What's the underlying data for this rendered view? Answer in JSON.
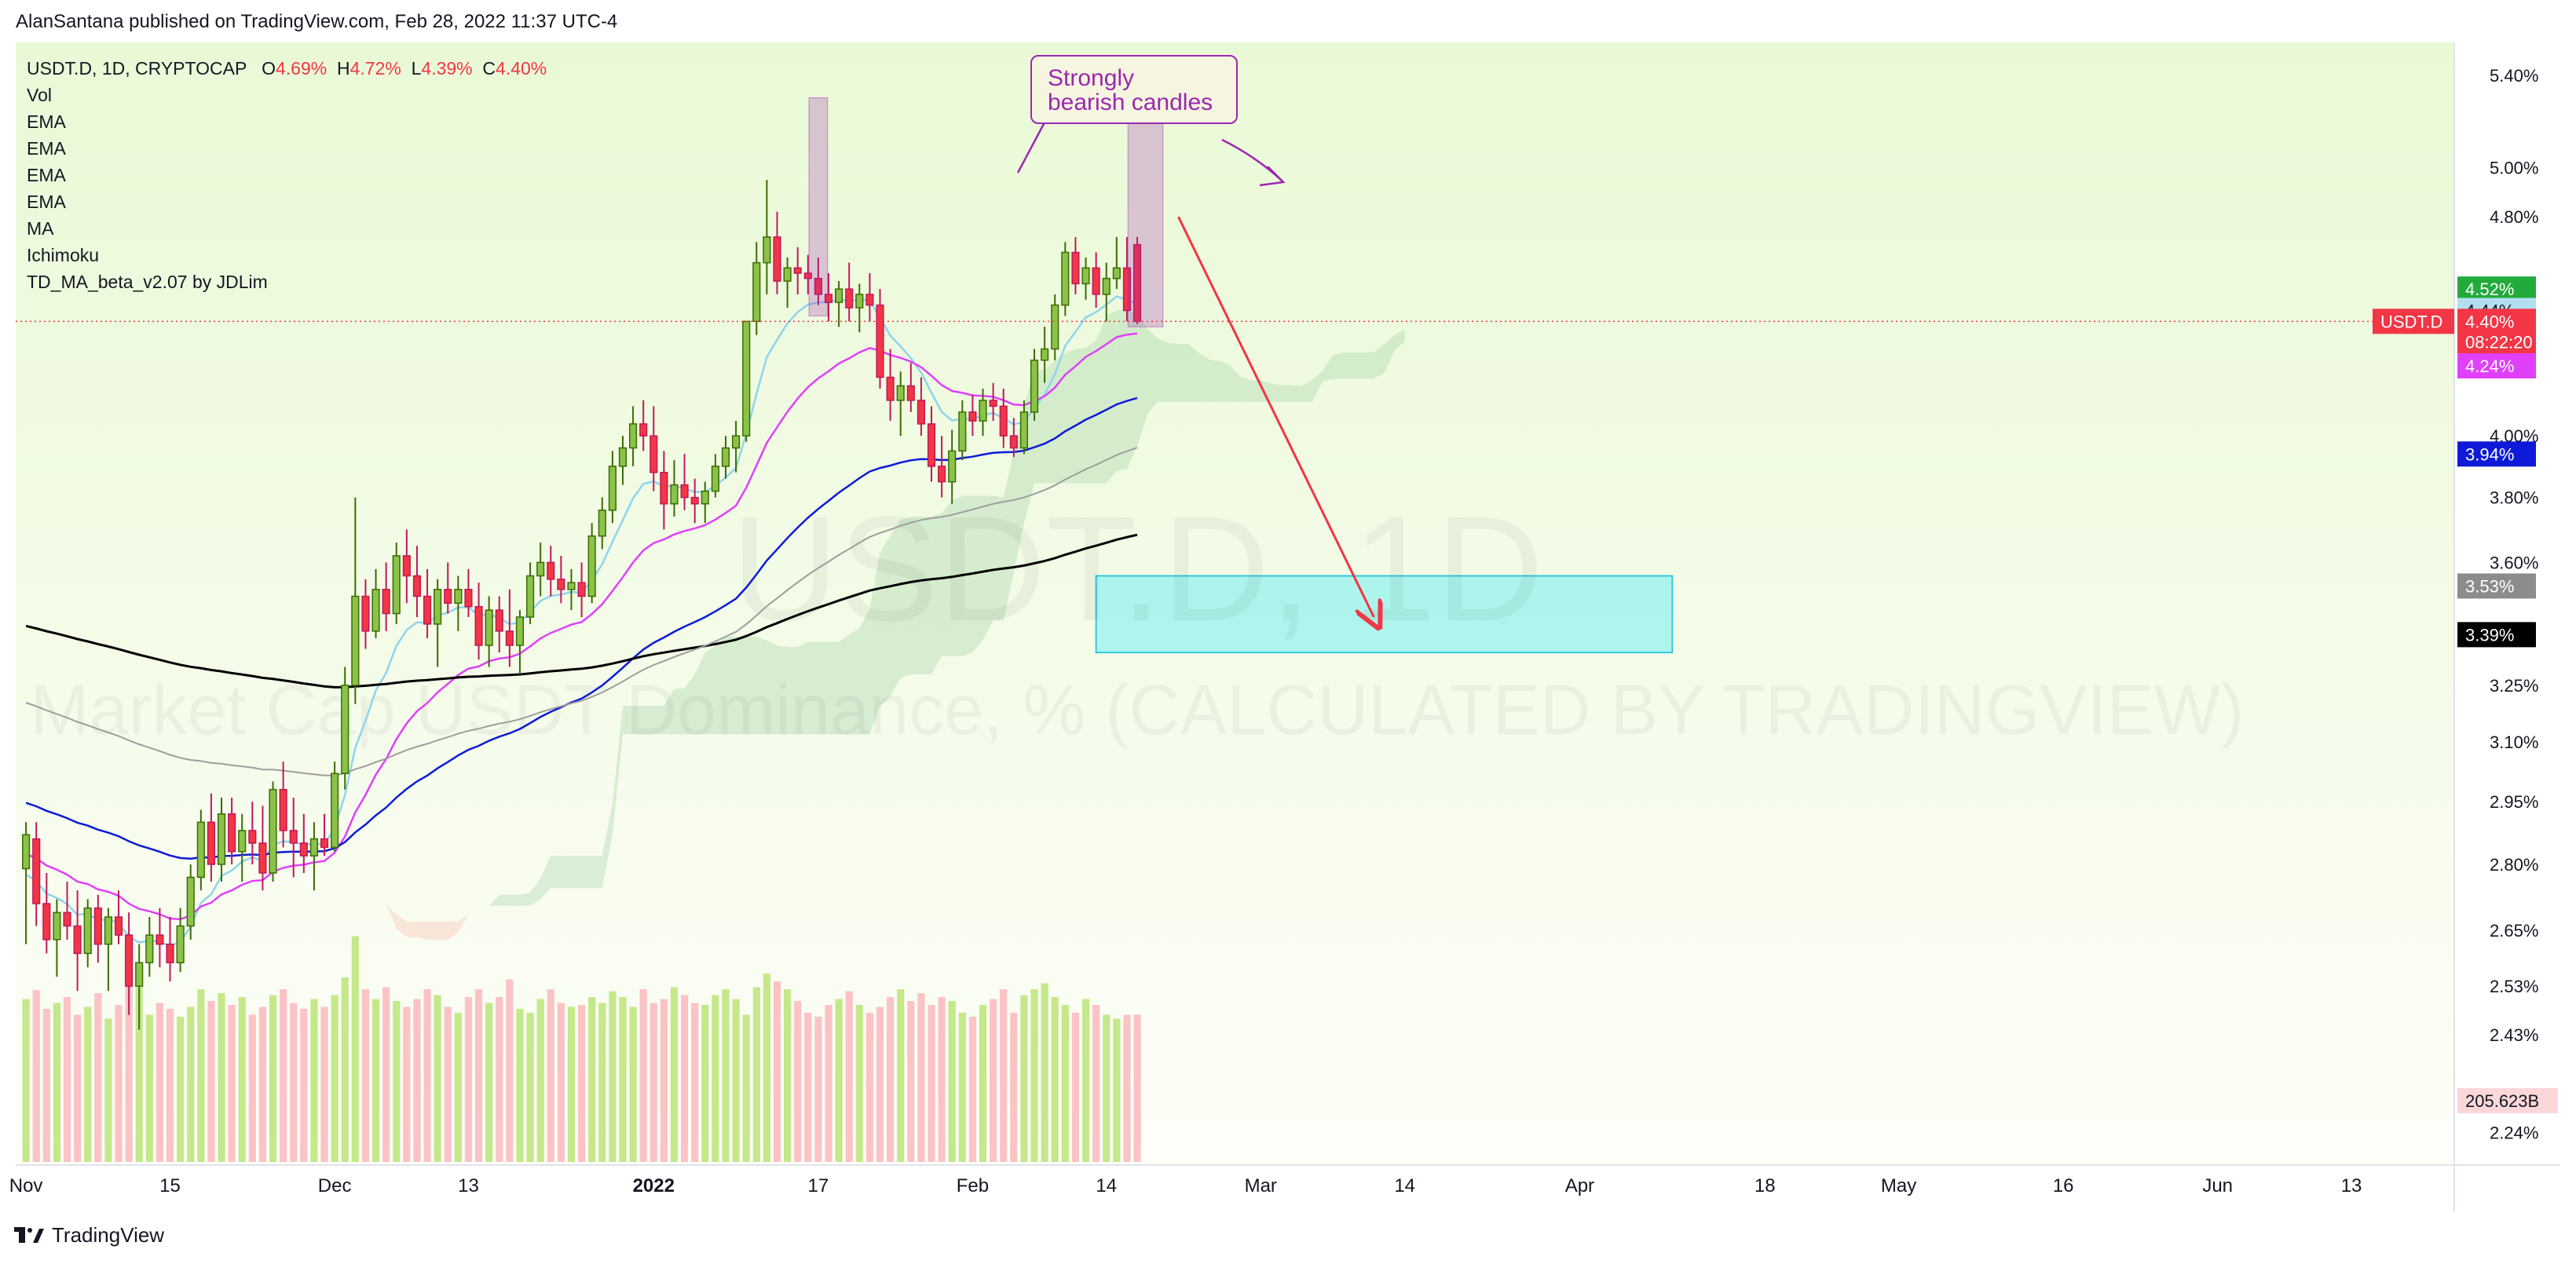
{
  "header": {
    "text": "AlanSantana published on TradingView.com, Feb 28, 2022 11:37 UTC-4"
  },
  "legend": {
    "symbol": "USDT.D, 1D, CRYPTOCAP",
    "ohlc": [
      {
        "k": "O",
        "v": "4.69%"
      },
      {
        "k": "H",
        "v": "4.72%"
      },
      {
        "k": "L",
        "v": "4.39%"
      },
      {
        "k": "C",
        "v": "4.40%"
      }
    ],
    "indicators": [
      "Vol",
      "EMA",
      "EMA",
      "EMA",
      "EMA",
      "MA",
      "Ichimoku",
      "TD_MA_beta_v2.07 by JDLim"
    ]
  },
  "watermark": {
    "line1": "USDT.D, 1D",
    "line2": "Market Cap USDT Dominance, % (CALCULATED BY TRADINGVIEW)"
  },
  "annotation": {
    "text_line1": "Strongly",
    "text_line2": "bearish candles"
  },
  "price_tags": [
    {
      "text": "4.52%",
      "bg": "#22ab3c"
    },
    {
      "text": "4.44%",
      "bg": "#b2dfee",
      "fg": "#131722"
    },
    {
      "text": "4.40%",
      "sub": "08:22:20",
      "bg": "#f23645",
      "symbol": "USDT.D"
    },
    {
      "text": "4.24%",
      "bg": "#e040fb"
    },
    {
      "text": "3.94%",
      "bg": "#0d1ad8"
    },
    {
      "text": "3.53%",
      "bg": "#8c8c8c"
    },
    {
      "text": "3.39%",
      "bg": "#000000"
    },
    {
      "text": "205.623B",
      "bg": "#fcd7d9",
      "fg": "#131722"
    }
  ],
  "footer": {
    "brand": "TradingView"
  },
  "chart_data": {
    "type": "candlestick",
    "title": "USDT.D, 1D, CRYPTOCAP",
    "y_axis": {
      "scale": "log",
      "ticks": [
        "5.40%",
        "5.00%",
        "4.80%",
        "4.00%",
        "3.80%",
        "3.60%",
        "3.25%",
        "3.10%",
        "2.95%",
        "2.80%",
        "2.65%",
        "2.53%",
        "2.43%",
        "2.24%"
      ],
      "tick_values": [
        5.4,
        5.0,
        4.8,
        4.0,
        3.8,
        3.6,
        3.25,
        3.1,
        2.95,
        2.8,
        2.65,
        2.53,
        2.43,
        2.24
      ],
      "range": [
        2.18,
        5.55
      ]
    },
    "x_axis": {
      "ticks": [
        "Nov",
        "15",
        "Dec",
        "13",
        "2022",
        "17",
        "Feb",
        "14",
        "Mar",
        "14",
        "Apr",
        "18",
        "May",
        "16",
        "Jun",
        "13"
      ],
      "tick_day_index": [
        0,
        14,
        30,
        43,
        61,
        77,
        92,
        105,
        120,
        134,
        151,
        169,
        182,
        198,
        213,
        226
      ],
      "range_days": [
        -1,
        236
      ],
      "bold_ticks": [
        "2022"
      ]
    },
    "candles": {
      "fields": [
        "o",
        "h",
        "l",
        "c"
      ],
      "start": "2021-10-31",
      "values": [
        [
          2.79,
          2.9,
          2.62,
          2.87
        ],
        [
          2.86,
          2.9,
          2.66,
          2.71
        ],
        [
          2.71,
          2.78,
          2.6,
          2.63
        ],
        [
          2.63,
          2.72,
          2.55,
          2.69
        ],
        [
          2.69,
          2.76,
          2.63,
          2.66
        ],
        [
          2.66,
          2.74,
          2.52,
          2.6
        ],
        [
          2.6,
          2.72,
          2.57,
          2.7
        ],
        [
          2.7,
          2.73,
          2.58,
          2.62
        ],
        [
          2.62,
          2.7,
          2.52,
          2.68
        ],
        [
          2.68,
          2.74,
          2.62,
          2.64
        ],
        [
          2.64,
          2.69,
          2.47,
          2.53
        ],
        [
          2.53,
          2.62,
          2.44,
          2.58
        ],
        [
          2.58,
          2.68,
          2.55,
          2.64
        ],
        [
          2.64,
          2.7,
          2.57,
          2.62
        ],
        [
          2.62,
          2.68,
          2.54,
          2.58
        ],
        [
          2.58,
          2.7,
          2.56,
          2.66
        ],
        [
          2.66,
          2.8,
          2.63,
          2.77
        ],
        [
          2.77,
          2.93,
          2.74,
          2.9
        ],
        [
          2.9,
          2.97,
          2.76,
          2.8
        ],
        [
          2.8,
          2.96,
          2.76,
          2.92
        ],
        [
          2.92,
          2.96,
          2.8,
          2.83
        ],
        [
          2.83,
          2.92,
          2.76,
          2.88
        ],
        [
          2.88,
          2.95,
          2.8,
          2.85
        ],
        [
          2.85,
          2.94,
          2.74,
          2.78
        ],
        [
          2.78,
          3.0,
          2.76,
          2.98
        ],
        [
          2.98,
          3.05,
          2.84,
          2.88
        ],
        [
          2.88,
          2.96,
          2.77,
          2.85
        ],
        [
          2.85,
          2.92,
          2.78,
          2.82
        ],
        [
          2.82,
          2.9,
          2.74,
          2.86
        ],
        [
          2.86,
          2.92,
          2.82,
          2.84
        ],
        [
          2.84,
          3.05,
          2.83,
          3.02
        ],
        [
          3.02,
          3.3,
          2.98,
          3.25
        ],
        [
          3.25,
          3.8,
          3.2,
          3.5
        ],
        [
          3.5,
          3.55,
          3.35,
          3.4
        ],
        [
          3.4,
          3.58,
          3.38,
          3.52
        ],
        [
          3.52,
          3.6,
          3.4,
          3.45
        ],
        [
          3.45,
          3.66,
          3.42,
          3.62
        ],
        [
          3.62,
          3.7,
          3.48,
          3.56
        ],
        [
          3.56,
          3.65,
          3.44,
          3.5
        ],
        [
          3.5,
          3.58,
          3.38,
          3.42
        ],
        [
          3.42,
          3.55,
          3.3,
          3.52
        ],
        [
          3.52,
          3.6,
          3.45,
          3.48
        ],
        [
          3.48,
          3.56,
          3.4,
          3.52
        ],
        [
          3.52,
          3.58,
          3.44,
          3.47
        ],
        [
          3.47,
          3.54,
          3.32,
          3.36
        ],
        [
          3.36,
          3.5,
          3.3,
          3.46
        ],
        [
          3.46,
          3.5,
          3.34,
          3.4
        ],
        [
          3.4,
          3.52,
          3.3,
          3.36
        ],
        [
          3.36,
          3.46,
          3.28,
          3.44
        ],
        [
          3.44,
          3.6,
          3.42,
          3.56
        ],
        [
          3.56,
          3.66,
          3.5,
          3.6
        ],
        [
          3.6,
          3.65,
          3.5,
          3.55
        ],
        [
          3.55,
          3.62,
          3.48,
          3.52
        ],
        [
          3.52,
          3.58,
          3.46,
          3.54
        ],
        [
          3.54,
          3.6,
          3.44,
          3.5
        ],
        [
          3.5,
          3.72,
          3.48,
          3.68
        ],
        [
          3.68,
          3.8,
          3.64,
          3.76
        ],
        [
          3.76,
          3.95,
          3.72,
          3.9
        ],
        [
          3.9,
          4.0,
          3.84,
          3.96
        ],
        [
          3.96,
          4.1,
          3.9,
          4.04
        ],
        [
          4.04,
          4.12,
          3.95,
          4.0
        ],
        [
          4.0,
          4.1,
          3.82,
          3.88
        ],
        [
          3.88,
          3.95,
          3.7,
          3.78
        ],
        [
          3.78,
          3.92,
          3.74,
          3.84
        ],
        [
          3.84,
          3.94,
          3.76,
          3.8
        ],
        [
          3.8,
          3.86,
          3.72,
          3.78
        ],
        [
          3.78,
          3.85,
          3.72,
          3.82
        ],
        [
          3.82,
          3.94,
          3.8,
          3.9
        ],
        [
          3.9,
          4.0,
          3.86,
          3.96
        ],
        [
          3.96,
          4.05,
          3.88,
          4.0
        ],
        [
          4.0,
          4.4,
          3.98,
          4.4
        ],
        [
          4.4,
          4.7,
          4.35,
          4.62
        ],
        [
          4.62,
          4.95,
          4.5,
          4.72
        ],
        [
          4.72,
          4.82,
          4.5,
          4.55
        ],
        [
          4.55,
          4.64,
          4.45,
          4.6
        ],
        [
          4.6,
          4.68,
          4.5,
          4.58
        ],
        [
          4.58,
          4.65,
          4.5,
          4.56
        ],
        [
          4.56,
          4.64,
          4.46,
          4.5
        ],
        [
          4.5,
          4.58,
          4.4,
          4.47
        ],
        [
          4.47,
          4.55,
          4.38,
          4.52
        ],
        [
          4.52,
          4.62,
          4.4,
          4.45
        ],
        [
          4.45,
          4.54,
          4.36,
          4.5
        ],
        [
          4.5,
          4.58,
          4.4,
          4.46
        ],
        [
          4.46,
          4.52,
          4.16,
          4.2
        ],
        [
          4.2,
          4.3,
          4.05,
          4.12
        ],
        [
          4.12,
          4.22,
          4.0,
          4.17
        ],
        [
          4.17,
          4.25,
          4.08,
          4.12
        ],
        [
          4.12,
          4.2,
          4.0,
          4.04
        ],
        [
          4.04,
          4.1,
          3.85,
          3.9
        ],
        [
          3.9,
          4.0,
          3.8,
          3.85
        ],
        [
          3.85,
          4.02,
          3.78,
          3.95
        ],
        [
          3.95,
          4.12,
          3.92,
          4.08
        ],
        [
          4.08,
          4.14,
          4.0,
          4.05
        ],
        [
          4.05,
          4.16,
          4.0,
          4.12
        ],
        [
          4.12,
          4.18,
          4.05,
          4.1
        ],
        [
          4.1,
          4.16,
          3.96,
          4.0
        ],
        [
          4.0,
          4.06,
          3.93,
          3.96
        ],
        [
          3.96,
          4.12,
          3.94,
          4.08
        ],
        [
          4.08,
          4.3,
          4.05,
          4.26
        ],
        [
          4.26,
          4.38,
          4.18,
          4.3
        ],
        [
          4.3,
          4.5,
          4.26,
          4.46
        ],
        [
          4.46,
          4.7,
          4.42,
          4.66
        ],
        [
          4.66,
          4.72,
          4.5,
          4.54
        ],
        [
          4.54,
          4.64,
          4.48,
          4.6
        ],
        [
          4.6,
          4.66,
          4.45,
          4.5
        ],
        [
          4.5,
          4.62,
          4.4,
          4.56
        ],
        [
          4.56,
          4.72,
          4.52,
          4.6
        ],
        [
          4.6,
          4.72,
          4.4,
          4.44
        ],
        [
          4.69,
          4.72,
          4.39,
          4.4
        ]
      ]
    },
    "volume": {
      "values": [
        166,
        175,
        156,
        162,
        168,
        150,
        158,
        172,
        146,
        160,
        200,
        178,
        150,
        162,
        156,
        148,
        158,
        176,
        164,
        172,
        160,
        168,
        150,
        158,
        170,
        176,
        162,
        156,
        166,
        158,
        170,
        188,
        230,
        176,
        166,
        178,
        164,
        158,
        166,
        176,
        170,
        158,
        152,
        168,
        176,
        162,
        168,
        186,
        156,
        152,
        166,
        176,
        162,
        158,
        160,
        168,
        162,
        174,
        168,
        158,
        176,
        162,
        166,
        178,
        170,
        162,
        160,
        170,
        176,
        166,
        150,
        178,
        192,
        184,
        176,
        164,
        152,
        148,
        160,
        166,
        174,
        160,
        152,
        158,
        168,
        176,
        164,
        172,
        160,
        168,
        164,
        152,
        148,
        160,
        166,
        176,
        152,
        170,
        176,
        182,
        168,
        160,
        152,
        166,
        160,
        150,
        146,
        150,
        150
      ],
      "last_label": "205.623B"
    },
    "series": [
      {
        "name": "EMA",
        "color": "#90d4ec"
      },
      {
        "name": "EMA",
        "color": "#e040fb"
      },
      {
        "name": "EMA",
        "color": "#0d1ad8"
      },
      {
        "name": "EMA",
        "color": "#000000"
      },
      {
        "name": "MA",
        "color": "#9e9e9e"
      }
    ],
    "last_price": {
      "symbol": "USDT.D",
      "value": "4.40%",
      "countdown": "08:22:20"
    },
    "target_zone": {
      "price_low": 3.34,
      "price_high": 3.56,
      "day_start": 104,
      "day_end": 160
    },
    "colors": {
      "up": "#8bc34a",
      "down": "#f23645",
      "bg_top": "#e8f8d4",
      "bg_bottom": "#fdfef8"
    }
  }
}
